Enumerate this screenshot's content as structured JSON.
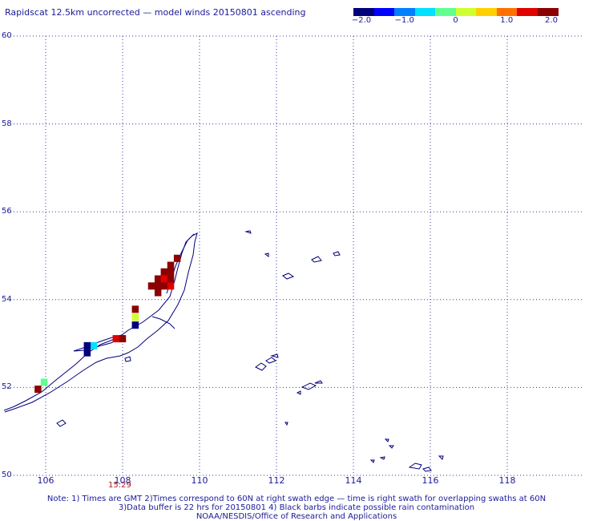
{
  "title": "Rapidscat 12.5km uncorrected — model winds 20150801 ascending",
  "colorbar": {
    "colors": [
      "#00007a",
      "#0000ff",
      "#0080ff",
      "#00e0ff",
      "#60ff90",
      "#d0ff30",
      "#ffd000",
      "#ff7000",
      "#e00000",
      "#8b0000"
    ],
    "ticks": [
      "−2.0",
      "−1.0",
      "0",
      "1.0",
      "2.0"
    ]
  },
  "axes": {
    "lon_range": [
      105,
      120
    ],
    "lat_range": [
      50,
      60
    ],
    "x_ticks": [
      "106",
      "108",
      "110",
      "112",
      "114",
      "116",
      "118"
    ],
    "y_ticks": [
      "60",
      "58",
      "56",
      "54",
      "52",
      "50"
    ]
  },
  "time_label": "15:29",
  "notes": [
    "Note: 1) Times are GMT 2)Times correspond to 60N at right swath edge — time is right swath for overlapping swaths at 60N",
    "3)Data buffer is 22 hrs for 20150801 4) Black barbs indicate possible rain contamination",
    "NOAA/NESDIS/Office of Research and Applications"
  ],
  "wind_cells": [
    {
      "lon": 109.42,
      "lat": 54.94,
      "value": 2.0
    },
    {
      "lon": 109.25,
      "lat": 54.78,
      "value": 2.0
    },
    {
      "lon": 109.08,
      "lat": 54.63,
      "value": 2.0
    },
    {
      "lon": 109.25,
      "lat": 54.63,
      "value": 2.0
    },
    {
      "lon": 108.92,
      "lat": 54.47,
      "value": 2.0
    },
    {
      "lon": 109.08,
      "lat": 54.47,
      "value": 1.3
    },
    {
      "lon": 109.25,
      "lat": 54.47,
      "value": 2.0
    },
    {
      "lon": 108.75,
      "lat": 54.31,
      "value": 2.0
    },
    {
      "lon": 108.92,
      "lat": 54.31,
      "value": 2.0
    },
    {
      "lon": 109.08,
      "lat": 54.31,
      "value": 2.0
    },
    {
      "lon": 109.25,
      "lat": 54.31,
      "value": 1.5
    },
    {
      "lon": 108.92,
      "lat": 54.16,
      "value": 2.0
    },
    {
      "lon": 108.33,
      "lat": 53.78,
      "value": 2.0
    },
    {
      "lon": 108.33,
      "lat": 53.6,
      "value": 0.0
    },
    {
      "lon": 108.33,
      "lat": 53.42,
      "value": -1.6
    },
    {
      "lon": 107.83,
      "lat": 53.11,
      "value": 1.4
    },
    {
      "lon": 108.0,
      "lat": 53.11,
      "value": 1.7
    },
    {
      "lon": 107.25,
      "lat": 52.95,
      "value": -0.8
    },
    {
      "lon": 107.08,
      "lat": 52.95,
      "value": -1.8
    },
    {
      "lon": 107.08,
      "lat": 52.79,
      "value": -1.9
    },
    {
      "lon": 105.96,
      "lat": 52.12,
      "value": -0.3
    },
    {
      "lon": 105.8,
      "lat": 51.96,
      "value": 1.8
    }
  ]
}
